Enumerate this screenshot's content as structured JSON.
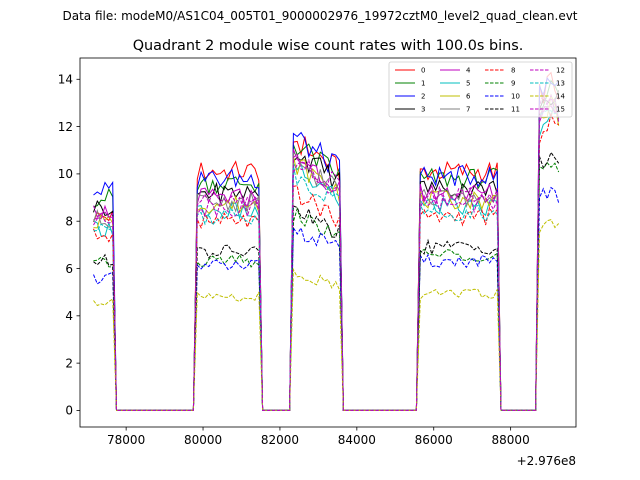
{
  "chart_data": {
    "type": "line",
    "suptitle": "Data file: modeM0/AS1C04_005T01_9000002976_19972cztM0_level2_quad_clean.evt",
    "title": "Quadrant 2 module wise count rates with 100.0s bins.",
    "xlabel": "",
    "ylabel": "",
    "x_offset_label": "+2.976e8",
    "xlim": [
      76800,
      89700
    ],
    "ylim": [
      -0.7,
      14.9
    ],
    "xticks": [
      78000,
      80000,
      82000,
      84000,
      86000,
      88000
    ],
    "xtick_labels": [
      "78000",
      "80000",
      "82000",
      "84000",
      "86000",
      "88000"
    ],
    "yticks": [
      0,
      2,
      4,
      6,
      8,
      10,
      12,
      14
    ],
    "ytick_labels": [
      "0",
      "2",
      "4",
      "6",
      "8",
      "10",
      "12",
      "14"
    ],
    "legend_position": "upper-right",
    "segments": [
      {
        "start": 77150,
        "end": 77650
      },
      {
        "start": 79850,
        "end": 81450
      },
      {
        "start": 82350,
        "end": 83550
      },
      {
        "start": 85650,
        "end": 87650
      },
      {
        "start": 88750,
        "end": 89350
      }
    ],
    "series": [
      {
        "name": "0",
        "color": "#ff0000",
        "dash": "solid",
        "levels": [
          8.2,
          10.1,
          11.5,
          10.1,
          13.3
        ]
      },
      {
        "name": "1",
        "color": "#008000",
        "dash": "solid",
        "levels": [
          9.0,
          9.6,
          11.3,
          9.8,
          13.1
        ]
      },
      {
        "name": "2",
        "color": "#0000ff",
        "dash": "solid",
        "levels": [
          9.3,
          9.8,
          11.6,
          9.9,
          13.5
        ]
      },
      {
        "name": "3",
        "color": "#000000",
        "dash": "solid",
        "levels": [
          8.6,
          9.2,
          11.0,
          9.4,
          12.8
        ]
      },
      {
        "name": "4",
        "color": "#bf00bf",
        "dash": "solid",
        "levels": [
          8.4,
          9.0,
          10.8,
          9.2,
          12.6
        ]
      },
      {
        "name": "5",
        "color": "#00bfbf",
        "dash": "solid",
        "levels": [
          7.7,
          8.4,
          10.2,
          8.6,
          12.0
        ]
      },
      {
        "name": "6",
        "color": "#bfbf00",
        "dash": "solid",
        "levels": [
          8.0,
          8.7,
          10.5,
          8.9,
          12.3
        ]
      },
      {
        "name": "7",
        "color": "#808080",
        "dash": "solid",
        "levels": [
          8.1,
          8.8,
          10.6,
          9.0,
          12.4
        ]
      },
      {
        "name": "8",
        "color": "#ff0000",
        "dash": "dashed",
        "levels": [
          7.4,
          8.0,
          9.2,
          8.2,
          11.8
        ]
      },
      {
        "name": "9",
        "color": "#008000",
        "dash": "dashed",
        "levels": [
          6.2,
          6.3,
          8.3,
          6.6,
          10.0
        ]
      },
      {
        "name": "10",
        "color": "#0000ff",
        "dash": "dashed",
        "levels": [
          5.6,
          6.1,
          7.7,
          6.3,
          8.8
        ]
      },
      {
        "name": "11",
        "color": "#000000",
        "dash": "dashed",
        "levels": [
          6.3,
          6.7,
          8.5,
          6.9,
          10.3
        ]
      },
      {
        "name": "12",
        "color": "#bf00bf",
        "dash": "dashed",
        "levels": [
          8.0,
          8.6,
          10.4,
          8.8,
          12.5
        ]
      },
      {
        "name": "13",
        "color": "#00bfbf",
        "dash": "dashed",
        "levels": [
          7.6,
          8.2,
          10.0,
          8.4,
          12.0
        ]
      },
      {
        "name": "14",
        "color": "#bfbf00",
        "dash": "dashed",
        "levels": [
          4.6,
          4.8,
          5.9,
          4.9,
          7.6
        ]
      },
      {
        "name": "15",
        "color": "#bf00bf",
        "dash": "dashed",
        "levels": [
          8.3,
          8.9,
          10.7,
          9.1,
          12.7
        ]
      }
    ]
  }
}
